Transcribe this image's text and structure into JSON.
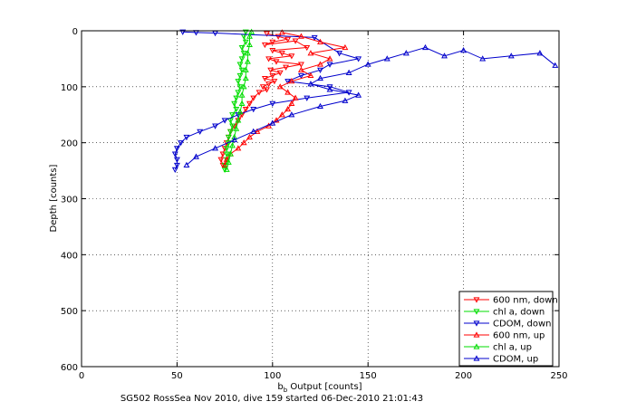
{
  "chart_data": {
    "type": "line",
    "title": "",
    "xlabel_main": "b",
    "xlabel_sub": "b",
    "xlabel_rest": " Output [counts]",
    "ylabel": "Depth [counts]",
    "caption": "SG502 RossSea Nov 2010, dive 159 started 06-Dec-2010 21:01:43",
    "xlim": [
      0,
      250
    ],
    "ylim": [
      0,
      600
    ],
    "y_reversed": true,
    "grid": true,
    "legend_position": "bottom-right",
    "xticks": [
      "0",
      "50",
      "100",
      "150",
      "200",
      "250"
    ],
    "yticks": [
      "0",
      "100",
      "200",
      "300",
      "400",
      "500",
      "600"
    ],
    "series": [
      {
        "name": "600 nm, down",
        "color": "#ff0000",
        "marker": "triangle-down",
        "points": [
          [
            97,
            5
          ],
          [
            103,
            10
          ],
          [
            108,
            15
          ],
          [
            100,
            20
          ],
          [
            96,
            25
          ],
          [
            112,
            18
          ],
          [
            118,
            30
          ],
          [
            100,
            35
          ],
          [
            105,
            40
          ],
          [
            110,
            45
          ],
          [
            98,
            50
          ],
          [
            102,
            55
          ],
          [
            115,
            60
          ],
          [
            107,
            65
          ],
          [
            99,
            70
          ],
          [
            104,
            75
          ],
          [
            100,
            80
          ],
          [
            96,
            85
          ],
          [
            101,
            90
          ],
          [
            98,
            95
          ],
          [
            95,
            100
          ],
          [
            97,
            105
          ],
          [
            93,
            110
          ],
          [
            90,
            120
          ],
          [
            88,
            130
          ],
          [
            86,
            140
          ],
          [
            84,
            150
          ],
          [
            82,
            160
          ],
          [
            80,
            170
          ],
          [
            78,
            180
          ],
          [
            77,
            190
          ],
          [
            76,
            200
          ],
          [
            75,
            210
          ],
          [
            74,
            220
          ],
          [
            73,
            230
          ],
          [
            74,
            240
          ]
        ]
      },
      {
        "name": "chl a, down",
        "color": "#00dd00",
        "marker": "triangle-down",
        "points": [
          [
            86,
            2
          ],
          [
            85,
            10
          ],
          [
            86,
            20
          ],
          [
            84,
            30
          ],
          [
            85,
            40
          ],
          [
            84,
            50
          ],
          [
            83,
            60
          ],
          [
            84,
            70
          ],
          [
            83,
            80
          ],
          [
            82,
            90
          ],
          [
            83,
            100
          ],
          [
            82,
            110
          ],
          [
            81,
            120
          ],
          [
            80,
            130
          ],
          [
            81,
            140
          ],
          [
            79,
            150
          ],
          [
            78,
            160
          ],
          [
            79,
            170
          ],
          [
            78,
            180
          ],
          [
            77,
            190
          ],
          [
            77,
            200
          ],
          [
            76,
            210
          ],
          [
            76,
            220
          ],
          [
            76,
            230
          ],
          [
            75,
            240
          ],
          [
            75,
            248
          ]
        ]
      },
      {
        "name": "CDOM, down",
        "color": "#0000cc",
        "marker": "triangle-down",
        "points": [
          [
            53,
            2
          ],
          [
            60,
            3
          ],
          [
            70,
            4
          ],
          [
            122,
            12
          ],
          [
            135,
            40
          ],
          [
            145,
            50
          ],
          [
            130,
            60
          ],
          [
            125,
            70
          ],
          [
            115,
            80
          ],
          [
            108,
            90
          ],
          [
            130,
            100
          ],
          [
            140,
            110
          ],
          [
            118,
            120
          ],
          [
            100,
            130
          ],
          [
            90,
            140
          ],
          [
            82,
            150
          ],
          [
            75,
            160
          ],
          [
            70,
            170
          ],
          [
            62,
            180
          ],
          [
            55,
            190
          ],
          [
            52,
            200
          ],
          [
            50,
            210
          ],
          [
            49,
            220
          ],
          [
            50,
            230
          ],
          [
            50,
            240
          ],
          [
            49,
            248
          ]
        ]
      },
      {
        "name": "600 nm, up",
        "color": "#ff0000",
        "marker": "triangle-up",
        "points": [
          [
            75,
            240
          ],
          [
            76,
            230
          ],
          [
            78,
            220
          ],
          [
            82,
            210
          ],
          [
            85,
            200
          ],
          [
            88,
            190
          ],
          [
            92,
            180
          ],
          [
            98,
            170
          ],
          [
            102,
            160
          ],
          [
            105,
            150
          ],
          [
            108,
            140
          ],
          [
            110,
            130
          ],
          [
            112,
            120
          ],
          [
            108,
            110
          ],
          [
            104,
            100
          ],
          [
            110,
            90
          ],
          [
            120,
            80
          ],
          [
            115,
            70
          ],
          [
            125,
            60
          ],
          [
            130,
            50
          ],
          [
            120,
            40
          ],
          [
            138,
            30
          ],
          [
            125,
            20
          ],
          [
            115,
            10
          ],
          [
            105,
            3
          ]
        ]
      },
      {
        "name": "chl a, up",
        "color": "#00dd00",
        "marker": "triangle-up",
        "points": [
          [
            76,
            248
          ],
          [
            77,
            235
          ],
          [
            78,
            220
          ],
          [
            79,
            205
          ],
          [
            80,
            190
          ],
          [
            81,
            175
          ],
          [
            82,
            160
          ],
          [
            83,
            145
          ],
          [
            84,
            130
          ],
          [
            84,
            115
          ],
          [
            85,
            100
          ],
          [
            86,
            85
          ],
          [
            86,
            70
          ],
          [
            87,
            55
          ],
          [
            87,
            40
          ],
          [
            88,
            25
          ],
          [
            88,
            10
          ],
          [
            89,
            2
          ]
        ]
      },
      {
        "name": "CDOM, up",
        "color": "#0000cc",
        "marker": "triangle-up",
        "points": [
          [
            55,
            240
          ],
          [
            60,
            225
          ],
          [
            70,
            210
          ],
          [
            80,
            195
          ],
          [
            90,
            180
          ],
          [
            100,
            165
          ],
          [
            110,
            150
          ],
          [
            125,
            135
          ],
          [
            138,
            125
          ],
          [
            145,
            115
          ],
          [
            130,
            105
          ],
          [
            120,
            95
          ],
          [
            125,
            85
          ],
          [
            140,
            75
          ],
          [
            150,
            60
          ],
          [
            160,
            50
          ],
          [
            170,
            40
          ],
          [
            180,
            30
          ],
          [
            190,
            45
          ],
          [
            200,
            35
          ],
          [
            210,
            50
          ],
          [
            225,
            45
          ],
          [
            240,
            40
          ],
          [
            248,
            62
          ]
        ]
      }
    ]
  }
}
